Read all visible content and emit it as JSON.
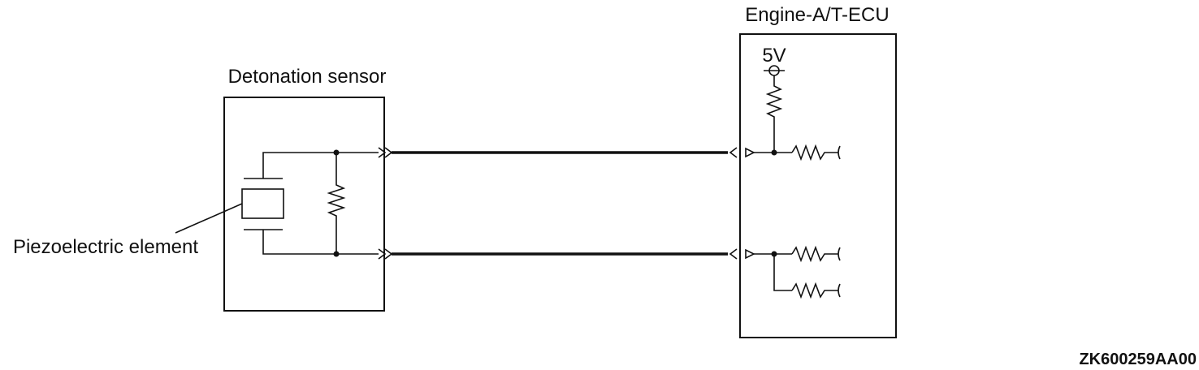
{
  "labels": {
    "ecu": "Engine-A/T-ECU",
    "sensor": "Detonation sensor",
    "piezo": "Piezoelectric element",
    "supply": "5V",
    "code": "ZK600259AA00"
  },
  "icons": {
    "resistor": "resistor-icon",
    "capacitor": "piezoelectric-element-icon",
    "terminal": "supply-terminal-icon",
    "connector": "connector-arrow-icon"
  }
}
